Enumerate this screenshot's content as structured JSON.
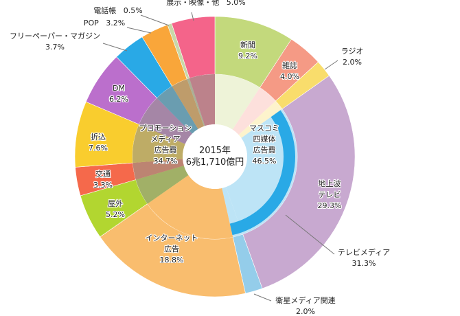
{
  "chart_data": {
    "type": "pie",
    "variant": "nested-donut",
    "center_label": {
      "year": "2015年",
      "total": "6兆1,710億円"
    },
    "inner_ring": [
      {
        "name": [
          "マスコミ",
          "四媒体",
          "広告費"
        ],
        "value_label": "46.5%",
        "value": 46.5
      },
      {
        "name": [
          "インターネット"
        ],
        "value": 18.8
      },
      {
        "name": [
          "プロモーション",
          "メディア",
          "広告費"
        ],
        "value_label": "34.7%",
        "value": 34.7
      }
    ],
    "tv_media": {
      "name": "テレビメディア",
      "value_label": "31.3%",
      "value": 31.3,
      "color": "#29a9e6"
    },
    "slices": [
      {
        "name": [
          "新聞"
        ],
        "value_label": "9.2%",
        "value": 9.2,
        "color": "#c3d97c",
        "inner": "#eef3d8"
      },
      {
        "name": [
          "雑誌"
        ],
        "value_label": "4.0%",
        "value": 4.0,
        "color": "#f59a85",
        "inner": "#fde0dc"
      },
      {
        "name": [
          "ラジオ"
        ],
        "value_label": "2.0%",
        "value": 2.0,
        "color": "#f9dd6c",
        "inner": "#fdf3cc"
      },
      {
        "name": [
          "地上波",
          "テレビ"
        ],
        "value_label": "29.3%",
        "value": 29.3,
        "color": "#c8a9d0",
        "inner": "#bde4f6"
      },
      {
        "name": [
          "衛星メディア関連"
        ],
        "value_label": "2.0%",
        "value": 2.0,
        "color": "#94cdea",
        "inner": "#bde4f6"
      },
      {
        "name": [
          "インターネット",
          "広告"
        ],
        "value_label": "18.8%",
        "value": 18.8,
        "color": "#f9bd6e",
        "inner": "#f9bd6e"
      },
      {
        "name": [
          "屋外"
        ],
        "value_label": "5.2%",
        "value": 5.2,
        "color": "#b2d630",
        "inner": "promo"
      },
      {
        "name": [
          "交通"
        ],
        "value_label": "3.3%",
        "value": 3.3,
        "color": "#f5694b",
        "inner": "promo"
      },
      {
        "name": [
          "折込"
        ],
        "value_label": "7.6%",
        "value": 7.6,
        "color": "#f9cd2e",
        "inner": "promo"
      },
      {
        "name": [
          "DM"
        ],
        "value_label": "6.2%",
        "value": 6.2,
        "color": "#bb6fcc",
        "inner": "promo"
      },
      {
        "name": [
          "フリーペーパー・マガジン"
        ],
        "value_label": "3.7%",
        "value": 3.7,
        "color": "#29a9e6",
        "inner": "promo"
      },
      {
        "name": [
          "POP"
        ],
        "value_label": "3.2%",
        "value": 3.2,
        "color": "#f9a63a",
        "inner": "promo"
      },
      {
        "name": [
          "電話帳"
        ],
        "value_label": "0.5%",
        "value": 0.5,
        "color": "#c8d8a8",
        "inner": "promo"
      },
      {
        "name": [
          "展示・映像・他"
        ],
        "value_label": "5.0%",
        "value": 5.0,
        "color": "#f4648a",
        "inner": "promo"
      }
    ]
  }
}
